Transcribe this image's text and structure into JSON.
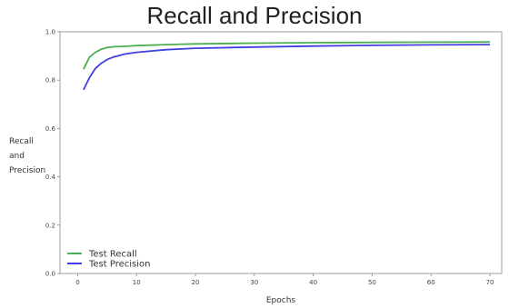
{
  "chart_data": {
    "type": "line",
    "title": "Recall and Precision",
    "xlabel": "Epochs",
    "ylabel": [
      "Recall",
      "and",
      "Precision"
    ],
    "xlim": [
      -3,
      72
    ],
    "ylim": [
      0,
      1
    ],
    "xticks": [
      0,
      10,
      20,
      30,
      40,
      50,
      60,
      70
    ],
    "yticks": [
      0.0,
      0.2,
      0.4,
      0.6,
      0.8,
      1.0
    ],
    "ytick_labels": [
      "0.0",
      "0.2",
      "0.4",
      "0.6",
      "0.8",
      "1.0"
    ],
    "legend_position": "lower-left",
    "grid": false,
    "series": [
      {
        "name": "Test Recall",
        "color": "#4caf50",
        "x": [
          1,
          2,
          3,
          4,
          5,
          6,
          8,
          10,
          15,
          20,
          30,
          40,
          50,
          60,
          70
        ],
        "y": [
          0.845,
          0.895,
          0.915,
          0.928,
          0.935,
          0.938,
          0.94,
          0.943,
          0.947,
          0.95,
          0.953,
          0.955,
          0.956,
          0.957,
          0.958
        ]
      },
      {
        "name": "Test Precision",
        "color": "#4040e0",
        "x": [
          1,
          2,
          3,
          4,
          5,
          6,
          8,
          10,
          15,
          20,
          30,
          40,
          50,
          60,
          70
        ],
        "y": [
          0.76,
          0.81,
          0.848,
          0.87,
          0.885,
          0.895,
          0.908,
          0.915,
          0.926,
          0.932,
          0.937,
          0.941,
          0.944,
          0.946,
          0.947
        ]
      }
    ]
  }
}
